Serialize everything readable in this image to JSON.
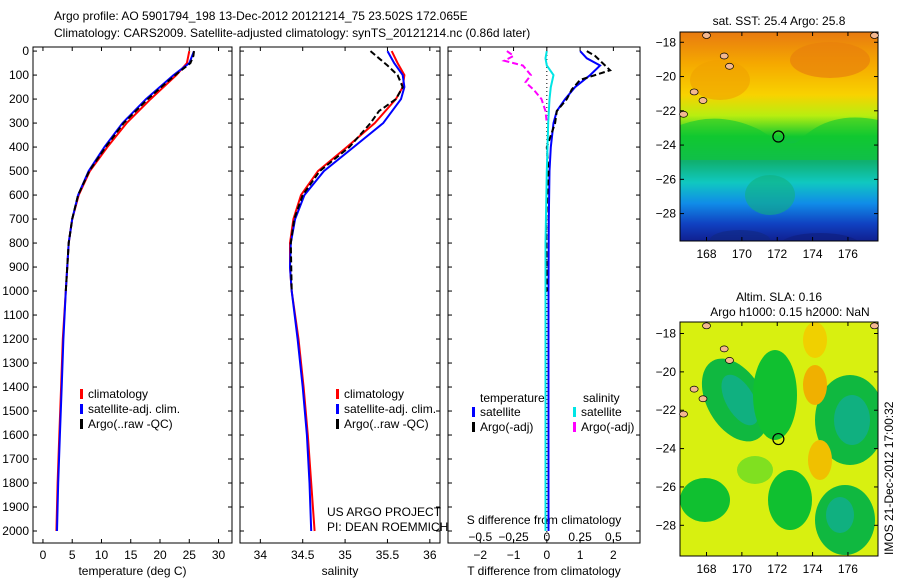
{
  "title": {
    "line1": "Argo profile: AO 5901794_198 13-Dec-2012 20121214_75 23.502S 172.065E",
    "line2": "Climatology: CARS2009. Satellite-adjusted climatology: synTS_20121214.nc (0.86d later)"
  },
  "credit": {
    "line1": "US ARGO PROJECT",
    "line2": "PI: DEAN ROEMMICH"
  },
  "stamp": "IMOS 21-Dec-2012 17:00:32",
  "chart_data": [
    {
      "type": "line",
      "id": "temperature",
      "xlabel": "temperature (deg C)",
      "xlim": [
        -1.7,
        32.3
      ],
      "ylim": [
        2050,
        -17
      ],
      "xticks": [
        0,
        5,
        10,
        15,
        20,
        25,
        30
      ],
      "yticks": [
        0,
        100,
        200,
        300,
        400,
        500,
        600,
        700,
        800,
        900,
        1000,
        1100,
        1200,
        1300,
        1400,
        1500,
        1600,
        1700,
        1800,
        1900,
        2000
      ],
      "legend": [
        "climatology",
        "satellite-adj. clim.",
        "Argo(..raw -QC)"
      ],
      "series": [
        {
          "name": "climatology",
          "color": "#ff0000",
          "depth": [
            0,
            50,
            100,
            200,
            300,
            400,
            500,
            600,
            700,
            800,
            1000,
            1200,
            1400,
            1600,
            1800,
            2000
          ],
          "values": [
            25.0,
            24.6,
            22.8,
            18.4,
            14.3,
            11.0,
            8.0,
            6.1,
            5.0,
            4.4,
            3.9,
            3.4,
            3.1,
            2.8,
            2.5,
            2.3
          ]
        },
        {
          "name": "satellite-adj. clim.",
          "color": "#0000ff",
          "depth": [
            0,
            50,
            100,
            200,
            300,
            400,
            500,
            600,
            700,
            800,
            1000,
            1200,
            1400,
            1600,
            1800,
            2000
          ],
          "values": [
            25.8,
            25.0,
            22.3,
            17.6,
            13.6,
            10.5,
            7.8,
            6.0,
            5.0,
            4.4,
            3.9,
            3.5,
            3.2,
            2.9,
            2.6,
            2.4
          ]
        },
        {
          "name": "Argo(..raw -QC)",
          "color": "#000000",
          "dashed": true,
          "depth": [
            0,
            20,
            50,
            100,
            150,
            200,
            300,
            400,
            500,
            600,
            700,
            800,
            1000
          ],
          "values": [
            25.8,
            25.7,
            25.2,
            22.6,
            20.2,
            17.9,
            13.8,
            10.7,
            7.9,
            6.0,
            5.0,
            4.4,
            3.9
          ]
        }
      ]
    },
    {
      "type": "line",
      "id": "salinity",
      "xlabel": "salinity",
      "xlim": [
        33.76,
        36.12
      ],
      "ylim": [
        2050,
        -17
      ],
      "xticks": [
        34,
        34.5,
        35,
        35.5,
        36
      ],
      "legend": [
        "climatology",
        "satellite-adj. clim.",
        "Argo(..raw -QC)"
      ],
      "series": [
        {
          "name": "climatology",
          "color": "#ff0000",
          "depth": [
            0,
            50,
            100,
            150,
            200,
            300,
            400,
            500,
            600,
            700,
            800,
            900,
            1000,
            1200,
            1400,
            1600,
            1800,
            2000
          ],
          "values": [
            35.55,
            35.62,
            35.7,
            35.68,
            35.6,
            35.35,
            35.02,
            34.68,
            34.48,
            34.39,
            34.35,
            34.35,
            34.37,
            34.45,
            34.51,
            34.56,
            34.6,
            34.64
          ]
        },
        {
          "name": "satellite-adj. clim.",
          "color": "#0000ff",
          "depth": [
            0,
            50,
            100,
            150,
            200,
            300,
            400,
            500,
            600,
            700,
            800,
            900,
            1000,
            1200,
            1400,
            1600,
            1800,
            2000
          ],
          "values": [
            35.5,
            35.58,
            35.68,
            35.7,
            35.66,
            35.45,
            35.1,
            34.75,
            34.52,
            34.41,
            34.36,
            34.35,
            34.37,
            34.44,
            34.5,
            34.55,
            34.58,
            34.6
          ]
        },
        {
          "name": "Argo(..raw -QC)",
          "color": "#000000",
          "dashed": true,
          "depth": [
            0,
            30,
            60,
            100,
            150,
            200,
            250,
            300,
            400,
            500,
            600,
            700,
            800,
            1000
          ],
          "values": [
            35.3,
            35.4,
            35.5,
            35.62,
            35.68,
            35.6,
            35.4,
            35.3,
            35.05,
            34.7,
            34.5,
            34.4,
            34.36,
            34.37
          ]
        }
      ]
    },
    {
      "type": "line",
      "id": "difference",
      "xlabel": "T difference from climatology",
      "x2label": "S difference from climatology",
      "xlim": [
        -2.97,
        2.8
      ],
      "ylim": [
        2050,
        -17
      ],
      "xticks": [
        -2,
        -1,
        0,
        1,
        2
      ],
      "x2ticks": [
        -0.5,
        -0.25,
        0,
        0.25,
        0.5
      ],
      "x2scale": 0.25,
      "legend": {
        "temperature_heading": "temperature",
        "salinity_heading": "salinity",
        "t_sat": "satellite",
        "t_argo": "Argo(-adj)",
        "s_sat": "satellite",
        "s_argo": "Argo(-adj)"
      },
      "series": [
        {
          "name": "T satellite",
          "color": "#0000ff",
          "units": "T",
          "depth": [
            0,
            30,
            60,
            100,
            150,
            200,
            250,
            300,
            400,
            500,
            700,
            1000,
            2000
          ],
          "values": [
            1.0,
            1.2,
            1.6,
            1.3,
            0.85,
            0.55,
            0.3,
            0.2,
            0.12,
            0.08,
            0.06,
            0.05,
            0.05
          ]
        },
        {
          "name": "T Argo(-adj)",
          "color": "#000000",
          "dashed": true,
          "units": "T",
          "depth": [
            0,
            20,
            40,
            80,
            120,
            160,
            200,
            250,
            300,
            400,
            500,
            700,
            1000
          ],
          "values": [
            1.2,
            1.45,
            1.6,
            1.9,
            1.0,
            0.75,
            0.6,
            0.3,
            0.25,
            0.0,
            0.05,
            -0.02,
            0.0
          ]
        },
        {
          "name": "S satellite",
          "color": "#00e5e5",
          "units": "S",
          "depth": [
            0,
            30,
            60,
            100,
            150,
            200,
            300,
            500,
            800,
            1000,
            2000
          ],
          "values": [
            0.0,
            -0.01,
            0.0,
            0.05,
            0.03,
            0.02,
            0.01,
            0.0,
            -0.01,
            -0.01,
            -0.01
          ]
        },
        {
          "name": "S Argo(-adj)",
          "color": "#ff00ff",
          "dashed": true,
          "units": "S",
          "depth": [
            0,
            20,
            40,
            60,
            100,
            130,
            160,
            200,
            250,
            300
          ],
          "values": [
            -0.3,
            -0.25,
            -0.32,
            -0.18,
            -0.12,
            -0.16,
            -0.1,
            -0.04,
            -0.01,
            0.0
          ]
        }
      ]
    },
    {
      "type": "heatmap",
      "id": "sst-map",
      "title": "sat. SST: 25.4 Argo: 25.8",
      "xlim": [
        166.5,
        177.7
      ],
      "ylim": [
        -29.6,
        -17.4
      ],
      "xticks": [
        168,
        170,
        172,
        174,
        176
      ],
      "yticks": [
        -18,
        -20,
        -22,
        -24,
        -26,
        -28
      ],
      "marker": {
        "lon": 172.065,
        "lat": -23.502
      }
    },
    {
      "type": "heatmap",
      "id": "sla-map",
      "title": "Altim. SLA: 0.16",
      "subtitle": "Argo h1000: 0.15 h2000: NaN",
      "xlim": [
        166.5,
        177.7
      ],
      "ylim": [
        -29.6,
        -17.4
      ],
      "xticks": [
        168,
        170,
        172,
        174,
        176
      ],
      "yticks": [
        -18,
        -20,
        -22,
        -24,
        -26,
        -28
      ],
      "marker": {
        "lon": 172.065,
        "lat": -23.502
      }
    }
  ]
}
